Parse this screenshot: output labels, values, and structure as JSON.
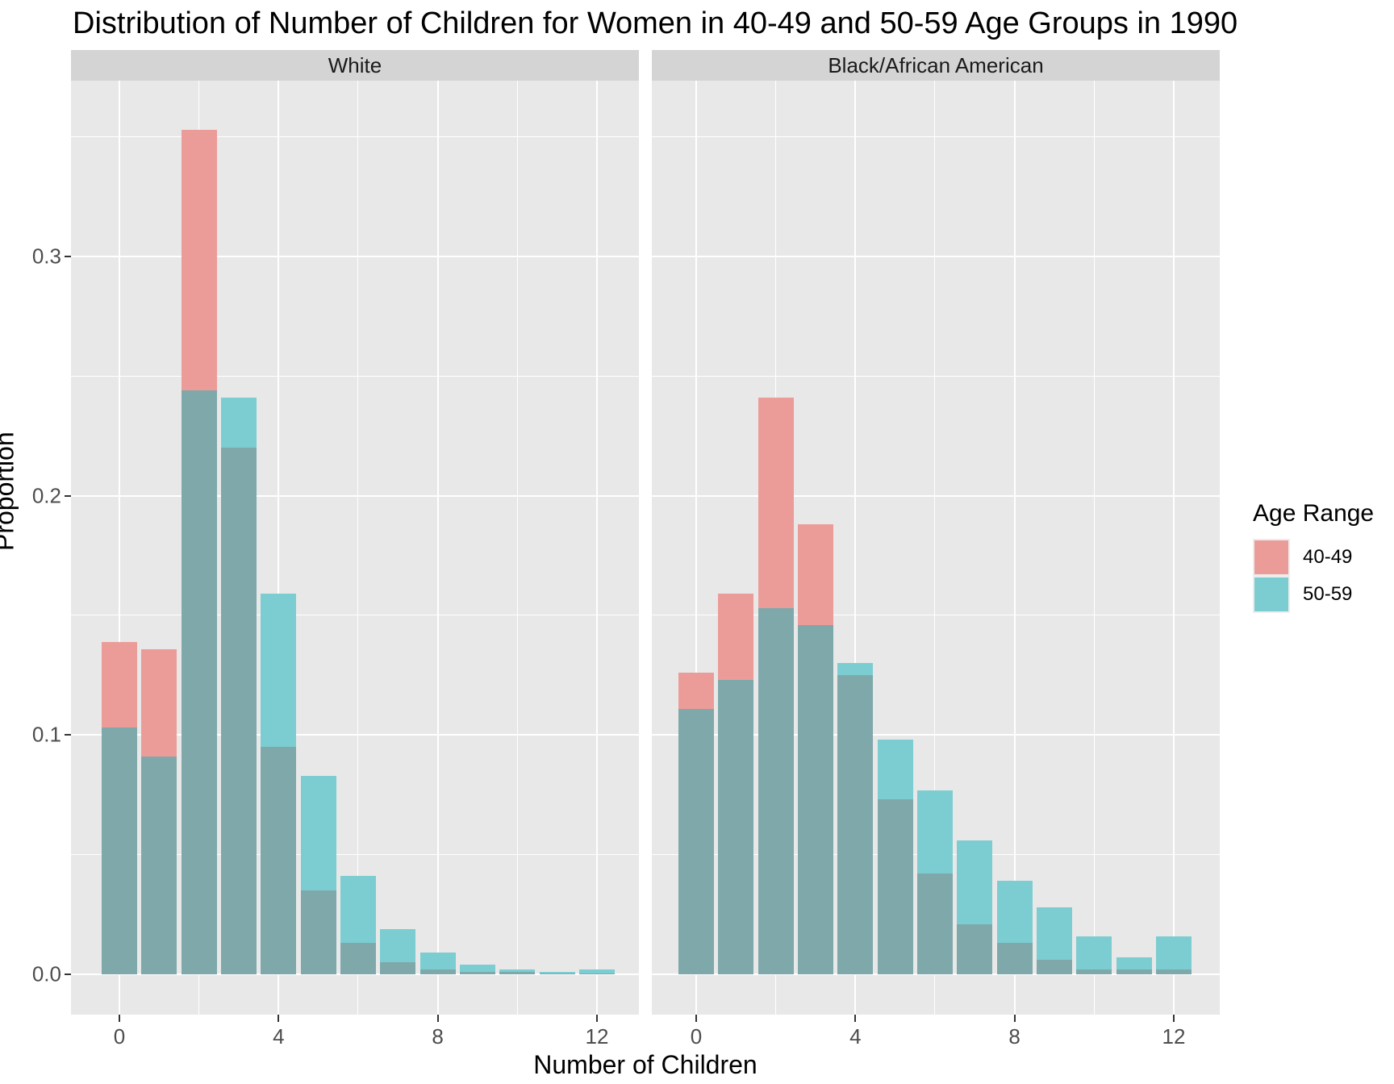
{
  "title": "Distribution of Number of Children for Women in 40-49 and 50-59 Age Groups in 1990",
  "y_axis": {
    "title": "Proportion",
    "tick_labels": [
      "0.0",
      "0.1",
      "0.2",
      "0.3"
    ],
    "tick_values": [
      0.0,
      0.1,
      0.2,
      0.3
    ]
  },
  "x_axis": {
    "title": "Number of Children",
    "tick_labels": [
      "0",
      "4",
      "8",
      "12"
    ],
    "tick_values": [
      0,
      4,
      8,
      12
    ]
  },
  "legend": {
    "title": "Age Range",
    "entries": [
      {
        "label": "40-49",
        "color": "#ec9c98"
      },
      {
        "label": "50-59",
        "color": "#7ccdd1"
      }
    ]
  },
  "colors": {
    "fill_40_49": "#ec9c98",
    "fill_50_59": "#7ccdd1",
    "overlap": "#7fa8ab",
    "panel_background": "#e8e8e8",
    "strip_background": "#d4d4d4",
    "gridline": "#ffffff",
    "tick_text": "#4d4d4d",
    "text": "#000000"
  },
  "chart_data": {
    "type": "bar",
    "subtype": "overlaid-histogram-proportions",
    "categories": [
      0,
      1,
      2,
      3,
      4,
      5,
      6,
      7,
      8,
      9,
      10,
      11,
      12
    ],
    "xlabel": "Number of Children",
    "ylabel": "Proportion",
    "ylim": [
      0,
      0.37
    ],
    "xlim": [
      -1.2,
      13.2
    ],
    "grid": "on",
    "legend_position": "right",
    "facets": [
      {
        "label": "White",
        "series": [
          {
            "name": "40-49",
            "values": [
              0.139,
              0.136,
              0.353,
              0.22,
              0.095,
              0.035,
              0.013,
              0.005,
              0.002,
              0.001,
              0.001,
              0.0005,
              0.0005
            ]
          },
          {
            "name": "50-59",
            "values": [
              0.103,
              0.091,
              0.244,
              0.241,
              0.159,
              0.083,
              0.041,
              0.019,
              0.009,
              0.004,
              0.002,
              0.001,
              0.002
            ]
          }
        ]
      },
      {
        "label": "Black/African American",
        "series": [
          {
            "name": "40-49",
            "values": [
              0.126,
              0.159,
              0.241,
              0.188,
              0.125,
              0.073,
              0.042,
              0.021,
              0.013,
              0.006,
              0.002,
              0.002,
              0.002
            ]
          },
          {
            "name": "50-59",
            "values": [
              0.111,
              0.123,
              0.153,
              0.146,
              0.13,
              0.098,
              0.077,
              0.056,
              0.039,
              0.028,
              0.016,
              0.007,
              0.016
            ]
          }
        ]
      }
    ]
  }
}
